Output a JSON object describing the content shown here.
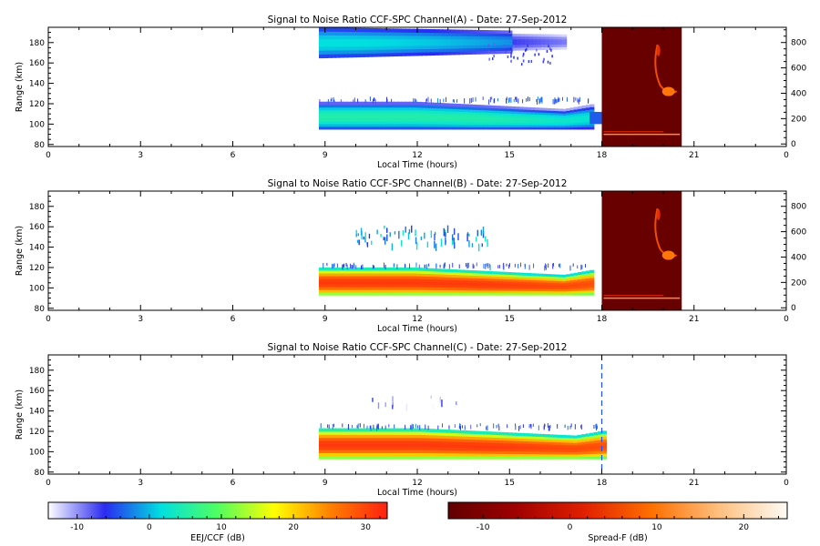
{
  "chart_data": [
    {
      "type": "heatmap",
      "title": "Signal to Noise Ratio CCF-SPC Channel(A) - Date: 27-Sep-2012",
      "xlabel": "Local Time (hours)",
      "ylabel": "Range (km)",
      "xlim": [
        0,
        24
      ],
      "ylim": [
        78,
        195
      ],
      "xticks": [
        "0",
        "3",
        "6",
        "9",
        "12",
        "15",
        "18",
        "21",
        "0"
      ],
      "yticks": [
        "80",
        "100",
        "120",
        "140",
        "160",
        "180"
      ],
      "right_axis": {
        "ylim": [
          -20,
          920
        ],
        "ticks": [
          "0",
          "200",
          "400",
          "600",
          "800"
        ]
      },
      "layers": [
        {
          "name": "EEJ/CCF",
          "kind": "upper_band",
          "x": [
            8.8,
            16.7
          ],
          "y": [
            163,
            195
          ],
          "peak_db": 2
        },
        {
          "name": "EEJ/CCF",
          "kind": "lower_band",
          "x": [
            8.8,
            17.6
          ],
          "y": [
            95,
            122
          ],
          "peak_db": 5
        },
        {
          "name": "Spread-F",
          "kind": "rti_block",
          "x": [
            18.0,
            20.6
          ],
          "y": [
            78,
            195
          ],
          "level_db": -13
        }
      ]
    },
    {
      "type": "heatmap",
      "title": "Signal to Noise Ratio CCF-SPC Channel(B) - Date: 27-Sep-2012",
      "xlabel": "Local Time (hours)",
      "ylabel": "Range (km)",
      "xlim": [
        0,
        24
      ],
      "ylim": [
        78,
        195
      ],
      "xticks": [
        "0",
        "3",
        "6",
        "9",
        "12",
        "15",
        "18",
        "21",
        "0"
      ],
      "yticks": [
        "80",
        "100",
        "120",
        "140",
        "160",
        "180"
      ],
      "right_axis": {
        "ylim": [
          -20,
          920
        ],
        "ticks": [
          "0",
          "200",
          "400",
          "600",
          "800"
        ]
      },
      "layers": [
        {
          "name": "EEJ/CCF",
          "kind": "lower_band",
          "x": [
            8.8,
            17.6
          ],
          "y": [
            93,
            120
          ],
          "peak_db": 31
        },
        {
          "name": "EEJ/CCF",
          "kind": "scatter",
          "x": [
            10.0,
            14.3
          ],
          "y": [
            143,
            162
          ],
          "peak_db": 4
        },
        {
          "name": "Spread-F",
          "kind": "rti_block",
          "x": [
            18.0,
            20.6
          ],
          "y": [
            78,
            195
          ],
          "level_db": -13
        }
      ]
    },
    {
      "type": "heatmap",
      "title": "Signal to Noise Ratio CCF-SPC Channel(C) - Date: 27-Sep-2012",
      "xlabel": "Local Time (hours)",
      "ylabel": "Range (km)",
      "xlim": [
        0,
        24
      ],
      "ylim": [
        78,
        195
      ],
      "xticks": [
        "0",
        "3",
        "6",
        "9",
        "12",
        "15",
        "18",
        "21",
        "0"
      ],
      "yticks": [
        "80",
        "100",
        "120",
        "140",
        "160",
        "180"
      ],
      "layers": [
        {
          "name": "EEJ/CCF",
          "kind": "lower_band",
          "x": [
            8.8,
            18.0
          ],
          "y": [
            93,
            123
          ],
          "peak_db": 31
        },
        {
          "name": "EEJ/CCF",
          "kind": "scatter",
          "x": [
            10.3,
            13.3
          ],
          "y": [
            145,
            158
          ],
          "peak_db": -5
        }
      ]
    }
  ],
  "colorbars": [
    {
      "label": "EEJ/CCF (dB)",
      "range": [
        -14,
        33
      ],
      "ticks": [
        "-10",
        "0",
        "10",
        "20",
        "30"
      ],
      "tick_values": [
        -10,
        0,
        10,
        20,
        30
      ],
      "stops": [
        "#ffffff",
        "#2a2af0",
        "#00e0e0",
        "#50ff60",
        "#ffff00",
        "#ff8000",
        "#ff2010"
      ]
    },
    {
      "label": "Spread-F (dB)",
      "range": [
        -14,
        25
      ],
      "ticks": [
        "-10",
        "0",
        "10",
        "20"
      ],
      "tick_values": [
        -10,
        0,
        10,
        20
      ],
      "stops": [
        "#600000",
        "#a00000",
        "#e02000",
        "#ff7000",
        "#ffc080",
        "#fffbf5"
      ]
    }
  ]
}
